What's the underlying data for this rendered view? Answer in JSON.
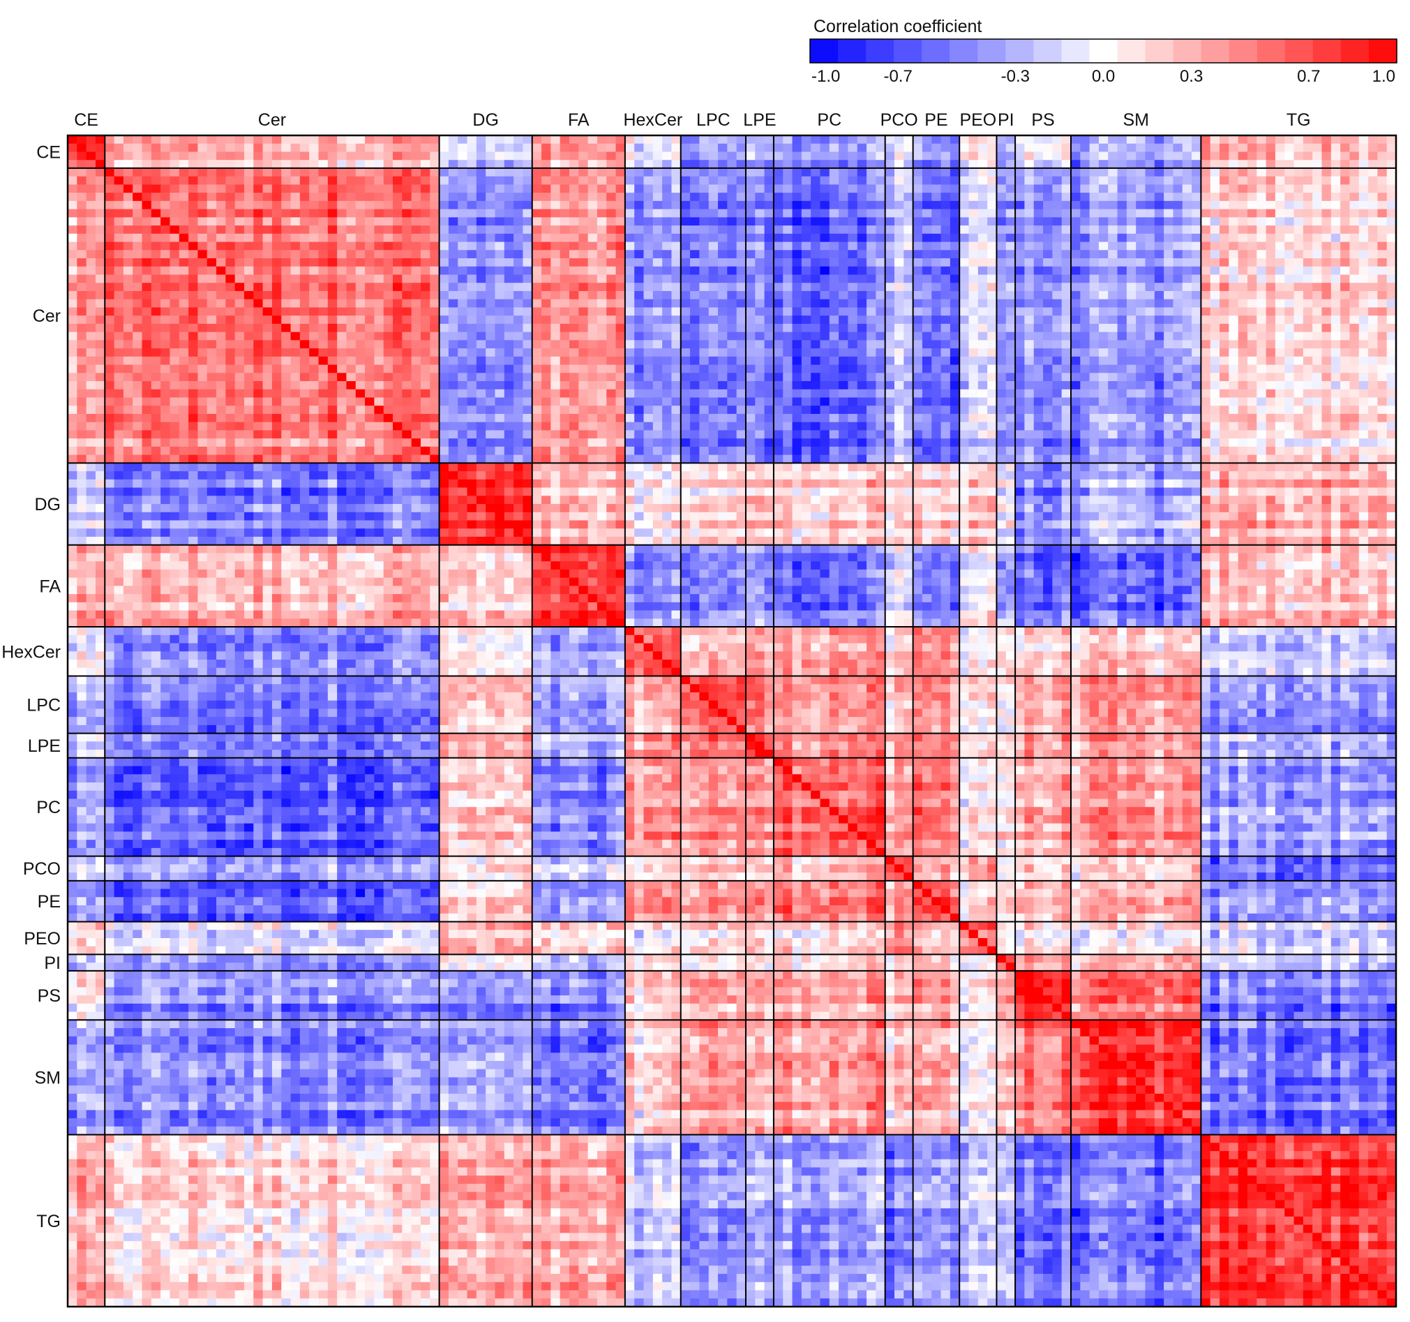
{
  "chart_data": {
    "type": "heatmap",
    "description_text": "",
    "colorbar": {
      "title": "Correlation coefficient",
      "range": [
        -1.0,
        1.0
      ],
      "ticks": [
        {
          "value": -1.0,
          "label": "-1.0"
        },
        {
          "value": -0.7,
          "label": "-0.7"
        },
        {
          "value": -0.3,
          "label": "-0.3"
        },
        {
          "value": 0.0,
          "label": "0.0"
        },
        {
          "value": 0.3,
          "label": "0.3"
        },
        {
          "value": 0.7,
          "label": "0.7"
        },
        {
          "value": 1.0,
          "label": "1.0"
        }
      ],
      "steps": 21,
      "colors": {
        "negative": "#0000ff",
        "zero": "#ffffff",
        "positive": "#ff0000"
      }
    },
    "groups": [
      {
        "label": "CE",
        "n_species": 4
      },
      {
        "label": "Cer",
        "n_species": 36
      },
      {
        "label": "DG",
        "n_species": 10
      },
      {
        "label": "FA",
        "n_species": 10
      },
      {
        "label": "HexCer",
        "n_species": 6
      },
      {
        "label": "LPC",
        "n_species": 7
      },
      {
        "label": "LPE",
        "n_species": 3
      },
      {
        "label": "PC",
        "n_species": 12
      },
      {
        "label": "PCO",
        "n_species": 3
      },
      {
        "label": "PE",
        "n_species": 5
      },
      {
        "label": "PEO",
        "n_species": 4
      },
      {
        "label": "PI",
        "n_species": 2
      },
      {
        "label": "PS",
        "n_species": 6
      },
      {
        "label": "SM",
        "n_species": 14
      },
      {
        "label": "TG",
        "n_species": 21
      }
    ],
    "block_mean_correlation": [
      [
        0.7,
        0.3,
        -0.25,
        0.3,
        -0.1,
        -0.35,
        -0.3,
        -0.4,
        -0.2,
        -0.45,
        0.1,
        -0.3,
        -0.05,
        -0.4,
        0.25
      ],
      [
        0.3,
        0.55,
        -0.5,
        0.35,
        -0.45,
        -0.5,
        -0.55,
        -0.6,
        -0.3,
        -0.6,
        -0.1,
        -0.4,
        -0.45,
        -0.45,
        0.15
      ],
      [
        -0.25,
        -0.5,
        0.8,
        0.2,
        0.0,
        0.2,
        0.2,
        0.2,
        0.1,
        0.15,
        0.25,
        0.0,
        -0.5,
        -0.35,
        0.3
      ],
      [
        0.3,
        0.35,
        0.2,
        0.75,
        -0.4,
        -0.4,
        -0.4,
        -0.5,
        -0.15,
        -0.45,
        0.1,
        -0.3,
        -0.55,
        -0.6,
        0.3
      ],
      [
        -0.1,
        -0.45,
        0.0,
        -0.4,
        0.6,
        0.3,
        0.35,
        0.4,
        0.1,
        0.45,
        0.05,
        0.1,
        0.15,
        0.15,
        -0.2
      ],
      [
        -0.35,
        -0.5,
        0.2,
        -0.4,
        0.3,
        0.7,
        0.5,
        0.45,
        0.2,
        0.4,
        0.15,
        0.1,
        0.35,
        0.4,
        -0.4
      ],
      [
        -0.3,
        -0.55,
        0.2,
        -0.4,
        0.35,
        0.5,
        0.7,
        0.4,
        0.2,
        0.4,
        0.1,
        0.1,
        0.3,
        0.25,
        -0.35
      ],
      [
        -0.4,
        -0.6,
        0.2,
        -0.5,
        0.4,
        0.45,
        0.4,
        0.65,
        0.3,
        0.55,
        0.15,
        0.15,
        0.35,
        0.4,
        -0.35
      ],
      [
        -0.2,
        -0.3,
        0.1,
        -0.15,
        0.1,
        0.2,
        0.2,
        0.3,
        0.6,
        0.35,
        0.45,
        0.1,
        0.15,
        0.15,
        -0.55
      ],
      [
        -0.45,
        -0.6,
        0.15,
        -0.45,
        0.45,
        0.4,
        0.4,
        0.55,
        0.35,
        0.65,
        0.2,
        0.15,
        0.3,
        0.3,
        -0.4
      ],
      [
        0.1,
        -0.1,
        0.25,
        0.1,
        0.05,
        0.15,
        0.1,
        0.15,
        0.45,
        0.2,
        0.6,
        0.05,
        0.05,
        0.0,
        -0.15
      ],
      [
        -0.3,
        -0.4,
        0.0,
        -0.3,
        0.1,
        0.1,
        0.1,
        0.15,
        0.1,
        0.15,
        0.05,
        0.7,
        0.35,
        0.25,
        -0.2
      ],
      [
        -0.05,
        -0.45,
        -0.5,
        -0.55,
        0.15,
        0.35,
        0.3,
        0.35,
        0.15,
        0.3,
        0.05,
        0.35,
        0.85,
        0.5,
        -0.55
      ],
      [
        -0.4,
        -0.45,
        -0.35,
        -0.6,
        0.15,
        0.4,
        0.25,
        0.4,
        0.15,
        0.3,
        0.0,
        0.25,
        0.5,
        0.75,
        -0.55
      ],
      [
        0.25,
        0.15,
        0.3,
        0.3,
        -0.2,
        -0.4,
        -0.35,
        -0.35,
        -0.55,
        -0.4,
        -0.15,
        -0.2,
        -0.55,
        -0.55,
        0.8
      ]
    ],
    "diagonal_value": 1.0,
    "legend_position": "top-right",
    "xlabel": "",
    "ylabel": ""
  }
}
